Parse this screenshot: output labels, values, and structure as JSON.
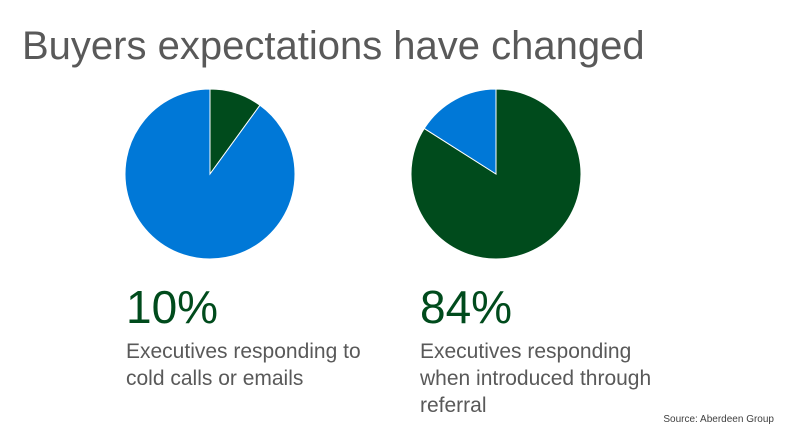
{
  "title": "Buyers expectations have changed",
  "source": "Source: Aberdeen Group",
  "colors": {
    "primary": "#00703c",
    "secondary": "#0078d7",
    "dark_green": "#004b1c",
    "text": "#595959"
  },
  "chart_data": [
    {
      "type": "pie",
      "title": "",
      "slices": [
        {
          "value": 10,
          "color": "#004b1c"
        },
        {
          "value": 90,
          "color": "#0078d7"
        }
      ],
      "headline": "10%",
      "description_lines": [
        "Executives responding to",
        "cold calls or emails"
      ]
    },
    {
      "type": "pie",
      "title": "",
      "slices": [
        {
          "value": 84,
          "color": "#004b1c"
        },
        {
          "value": 16,
          "color": "#0078d7"
        }
      ],
      "headline": "84%",
      "description_lines": [
        "Executives responding",
        "when introduced through",
        "referral"
      ]
    }
  ]
}
